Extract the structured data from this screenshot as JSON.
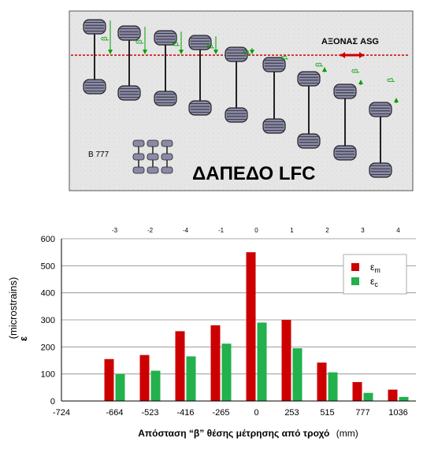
{
  "diagram": {
    "asg_label": "ΑΞΟΝΑΣ ASG",
    "beta_symbol": "β",
    "aircraft_label": "B 777",
    "pavement_label": "ΔΑΠΕΔΟ LFC",
    "colors": {
      "background": "#e8e8e8",
      "axis_line": "#cc0000",
      "beta_arrows": "#00a000",
      "tire_fill": "#8a8aa8"
    }
  },
  "chart_data": {
    "type": "bar",
    "categories": [
      "-724",
      "-664",
      "-523",
      "-416",
      "-265",
      "0",
      "253",
      "515",
      "777",
      "1036"
    ],
    "top_categories": [
      "",
      "-3",
      "-2",
      "-4",
      "-1",
      "0",
      "1",
      "2",
      "3",
      "4"
    ],
    "series": [
      {
        "name": "ε",
        "subscript": "m",
        "color": "#cc0000",
        "values": [
          null,
          155,
          170,
          258,
          280,
          550,
          300,
          142,
          70,
          42
        ]
      },
      {
        "name": "ε",
        "subscript": "c",
        "color": "#22b14c",
        "values": [
          null,
          100,
          112,
          165,
          212,
          290,
          195,
          106,
          30,
          15
        ]
      }
    ],
    "y_ticks": [
      "0",
      "100",
      "200",
      "300",
      "400",
      "500",
      "600"
    ],
    "ylim": [
      0,
      600
    ],
    "ylabel_symbol": "ε",
    "ylabel_unit": "(microstrains)",
    "xlabel": "Απόσταση “β” θέσης μέτρησης από τροχό",
    "xlabel_unit": "(mm)",
    "grid": true,
    "legend_position": "top-right"
  }
}
